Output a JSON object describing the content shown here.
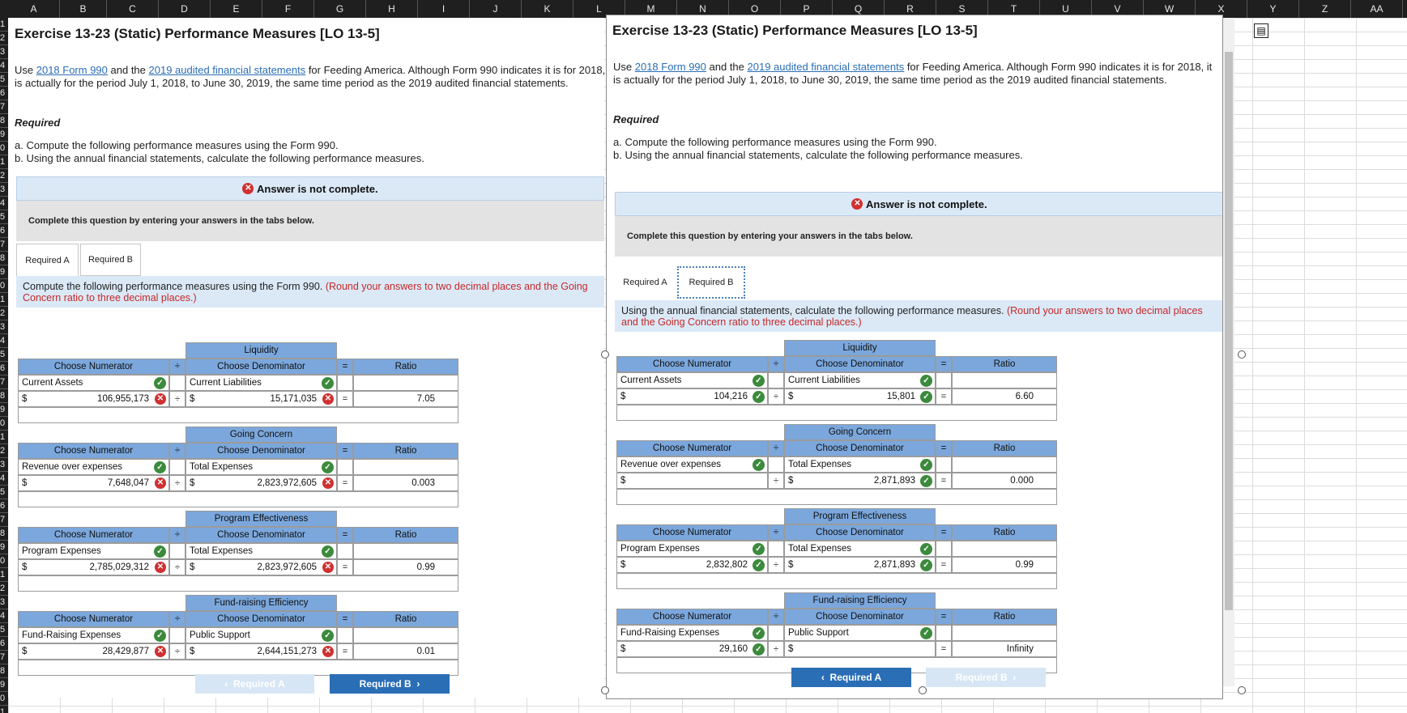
{
  "columns": [
    "A",
    "B",
    "C",
    "D",
    "E",
    "F",
    "G",
    "H",
    "I",
    "J",
    "K",
    "L",
    "M",
    "N",
    "O",
    "P",
    "Q",
    "R",
    "S",
    "T",
    "U",
    "V",
    "W",
    "X",
    "Y",
    "Z",
    "AA"
  ],
  "rows": [
    "1",
    "2",
    "3",
    "4",
    "5",
    "6",
    "7",
    "8",
    "9",
    "0",
    "1",
    "2",
    "3",
    "4",
    "5",
    "6",
    "7",
    "8",
    "9",
    "0",
    "1",
    "2",
    "3",
    "4",
    "5",
    "6",
    "7",
    "8",
    "9",
    "0",
    "1",
    "2",
    "3",
    "4",
    "5",
    "6",
    "7",
    "8",
    "9",
    "0",
    "1",
    "2",
    "3",
    "4",
    "5",
    "6",
    "7",
    "8",
    "9",
    "0",
    "1",
    "2",
    "3"
  ],
  "title": "Exercise 13-23 (Static) Performance Measures [LO 13-5]",
  "intro": {
    "p1": "Use ",
    "link1": "2018 Form 990",
    "p2": " and the ",
    "link2": "2019 audited financial statements",
    "p3": " for Feeding America. Although Form 990 indicates it is for 2018, it is actually for the period July 1, 2018, to June 30, 2019, the same time period as the 2019 audited financial statements."
  },
  "required_label": "Required",
  "part_a": "a. Compute the following performance measures using the Form 990.",
  "part_b": "b. Using the annual financial statements, calculate the following performance measures.",
  "not_complete": "Answer is not complete.",
  "complete_prompt": "Complete this question by entering your answers in the tabs below.",
  "tabs": [
    "Required A",
    "Required B"
  ],
  "left": {
    "instr": "Compute the following performance measures using the Form 990.",
    "instr_red": "(Round your answers to two decimal places and the Going Concern ratio to three decimal places.)",
    "sections": [
      {
        "title": "Liquidity",
        "num_label": "Current Assets",
        "den_label": "Current Liabilities",
        "num": "106,955,173",
        "den": "15,171,035",
        "ratio": "7.05"
      },
      {
        "title": "Going Concern",
        "num_label": "Revenue over expenses",
        "den_label": "Total Expenses",
        "num": "7,648,047",
        "den": "2,823,972,605",
        "ratio": "0.003"
      },
      {
        "title": "Program Effectiveness",
        "num_label": "Program Expenses",
        "den_label": "Total Expenses",
        "num": "2,785,029,312",
        "den": "2,823,972,605",
        "ratio": "0.99"
      },
      {
        "title": "Fund-raising Efficiency",
        "num_label": "Fund-Raising Expenses",
        "den_label": "Public Support",
        "num": "28,429,877",
        "den": "2,644,151,273",
        "ratio": "0.01"
      }
    ],
    "prev": "Required A",
    "next": "Required B"
  },
  "right": {
    "instr": "Using the annual financial statements, calculate the following performance measures.",
    "instr_red": "(Round your answers to two decimal places and the Going Concern ratio to three decimal places.)",
    "sections": [
      {
        "title": "Liquidity",
        "num_label": "Current Assets",
        "den_label": "Current Liabilities",
        "num": "104,216",
        "den": "15,801",
        "ratio": "6.60"
      },
      {
        "title": "Going Concern",
        "num_label": "Revenue over expenses",
        "den_label": "Total Expenses",
        "num": "",
        "den": "2,871,893",
        "ratio": "0.000"
      },
      {
        "title": "Program Effectiveness",
        "num_label": "Program Expenses",
        "den_label": "Total Expenses",
        "num": "2,832,802",
        "den": "2,871,893",
        "ratio": "0.99"
      },
      {
        "title": "Fund-raising Efficiency",
        "num_label": "Fund-Raising Expenses",
        "den_label": "Public Support",
        "num": "29,160",
        "den": "",
        "ratio": "Infinity"
      }
    ],
    "prev": "Required A",
    "next": "Required B"
  },
  "grid_labels": {
    "choose_num": "Choose Numerator",
    "choose_den": "Choose Denominator",
    "ratio": "Ratio",
    "div": "÷",
    "eq": "=",
    "dollar": "$"
  },
  "icons": {
    "x": "x-circle-icon",
    "check": "check-circle-icon"
  },
  "colors": {
    "header_blue": "#7ba7dc",
    "button_blue": "#2a6eb5",
    "error_red": "#d03030",
    "ok_green": "#3c8a3c"
  }
}
